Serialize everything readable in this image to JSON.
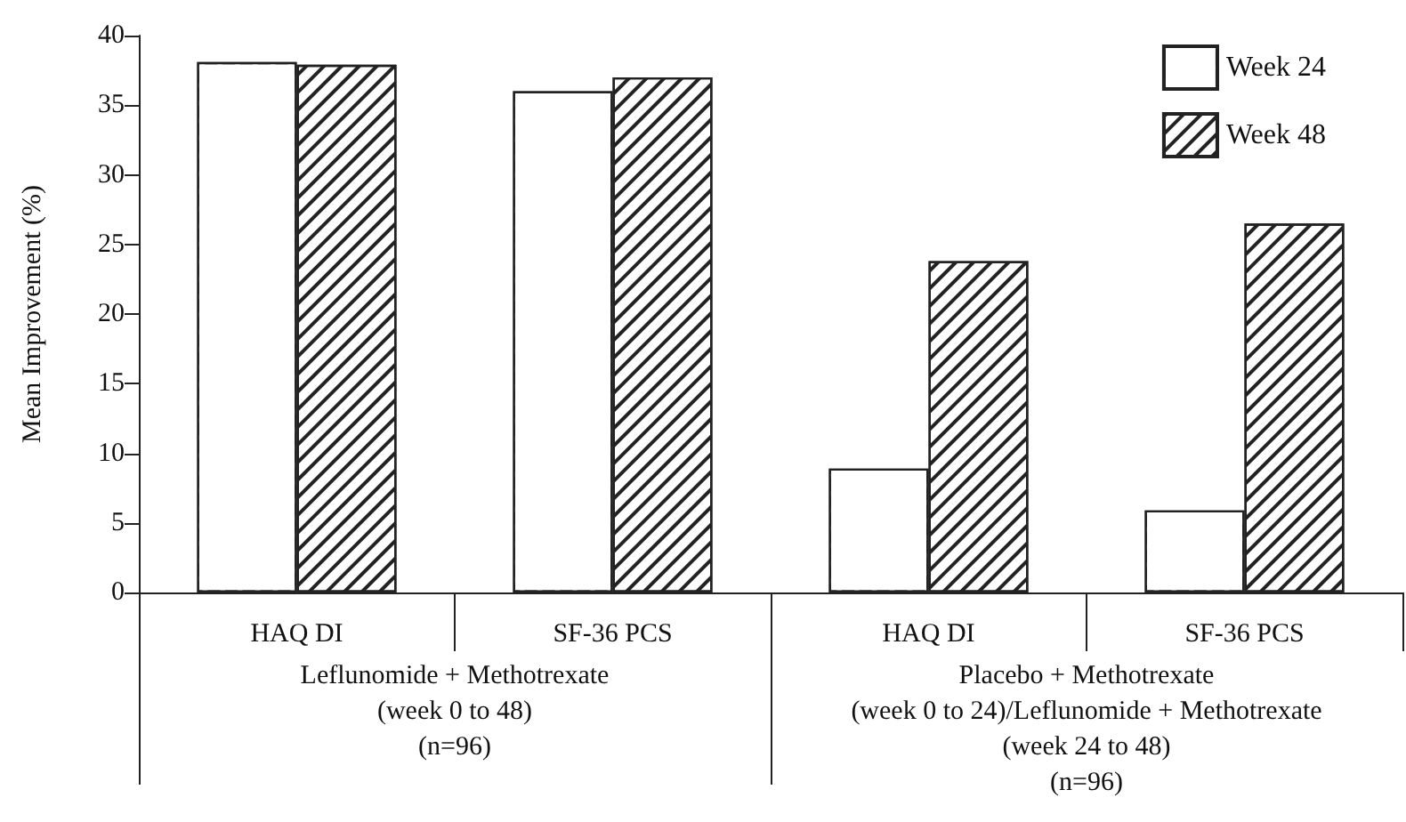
{
  "chart_data": {
    "type": "bar",
    "ylabel": "Mean Improvement (%)",
    "categories": [
      "HAQ DI",
      "SF-36 PCS",
      "HAQ DI",
      "SF-36 PCS"
    ],
    "series": [
      {
        "name": "Week 24",
        "color": "#ffffff",
        "values": [
          38.1,
          36.0,
          8.9,
          5.9
        ]
      },
      {
        "name": "Week 48",
        "color": "#222222",
        "values": [
          37.9,
          37.0,
          23.8,
          26.5
        ]
      }
    ],
    "ylim": [
      0,
      40
    ],
    "yticks": [
      0,
      5,
      10,
      15,
      20,
      25,
      30,
      35,
      40
    ],
    "grid": false,
    "legend": "top right",
    "annotations": [
      "Leflunomide + Methotrexate\n(week 0 to 48)\n(n=96)",
      "Placebo + Methotrexate\n(week 0 to 24)/Leflunomide + Methotrexate\n(week 24 to 48)\n(n=96)"
    ]
  }
}
